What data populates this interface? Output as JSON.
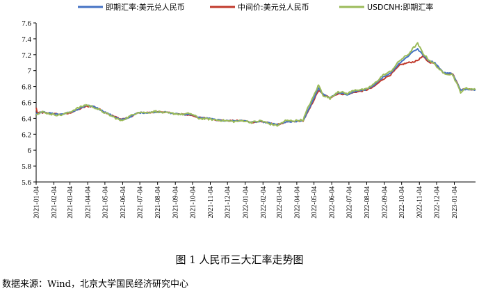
{
  "caption": "图 1  人民币三大汇率走势图",
  "source": "数据来源：Wind，北京大学国民经济研究中心",
  "chart_data": {
    "type": "line",
    "title": "",
    "xlabel": "",
    "ylabel": "",
    "ylim": [
      5.6,
      7.6
    ],
    "yticks": [
      {
        "value": 5.6,
        "label": "5.6"
      },
      {
        "value": 5.8,
        "label": "5.8"
      },
      {
        "value": 6.0,
        "label": "6"
      },
      {
        "value": 6.2,
        "label": "6.2"
      },
      {
        "value": 6.4,
        "label": "6.4"
      },
      {
        "value": 6.6,
        "label": "6.6"
      },
      {
        "value": 6.8,
        "label": "6.8"
      },
      {
        "value": 7.0,
        "label": "7"
      },
      {
        "value": 7.2,
        "label": "7.2"
      },
      {
        "value": 7.4,
        "label": "7.4"
      },
      {
        "value": 7.6,
        "label": "7.6"
      }
    ],
    "x_start": "2021-01-04",
    "x_end": "2023-02-10",
    "xtick_labels": [
      "2021-01-04",
      "2021-02-04",
      "2021-03-04",
      "2021-04-04",
      "2021-05-04",
      "2021-06-04",
      "2021-07-04",
      "2021-08-04",
      "2021-09-04",
      "2021-10-04",
      "2021-11-04",
      "2021-12-04",
      "2022-01-04",
      "2022-02-04",
      "2022-03-04",
      "2022-04-04",
      "2022-05-04",
      "2022-06-04",
      "2022-07-04",
      "2022-08-04",
      "2022-09-04",
      "2022-10-04",
      "2022-11-04",
      "2022-12-04",
      "2023-01-04"
    ],
    "grid": false,
    "legend_position": "top",
    "series": [
      {
        "name": "即期汇率:美元兑人民币",
        "color": "#4472c4",
        "points": [
          [
            "2021-01-04",
            6.47
          ],
          [
            "2021-01-06",
            6.46
          ],
          [
            "2021-01-15",
            6.48
          ],
          [
            "2021-02-01",
            6.46
          ],
          [
            "2021-02-15",
            6.45
          ],
          [
            "2021-03-01",
            6.47
          ],
          [
            "2021-03-15",
            6.5
          ],
          [
            "2021-04-01",
            6.56
          ],
          [
            "2021-04-15",
            6.55
          ],
          [
            "2021-05-01",
            6.49
          ],
          [
            "2021-05-15",
            6.44
          ],
          [
            "2021-06-01",
            6.38
          ],
          [
            "2021-06-15",
            6.41
          ],
          [
            "2021-07-01",
            6.47
          ],
          [
            "2021-07-15",
            6.47
          ],
          [
            "2021-08-01",
            6.48
          ],
          [
            "2021-08-15",
            6.48
          ],
          [
            "2021-09-01",
            6.46
          ],
          [
            "2021-09-15",
            6.45
          ],
          [
            "2021-10-01",
            6.45
          ],
          [
            "2021-10-15",
            6.41
          ],
          [
            "2021-11-01",
            6.4
          ],
          [
            "2021-11-15",
            6.38
          ],
          [
            "2021-12-01",
            6.37
          ],
          [
            "2021-12-15",
            6.37
          ],
          [
            "2022-01-01",
            6.37
          ],
          [
            "2022-01-15",
            6.35
          ],
          [
            "2022-02-01",
            6.36
          ],
          [
            "2022-02-15",
            6.34
          ],
          [
            "2022-03-01",
            6.32
          ],
          [
            "2022-03-15",
            6.35
          ],
          [
            "2022-04-01",
            6.36
          ],
          [
            "2022-04-15",
            6.37
          ],
          [
            "2022-04-25",
            6.52
          ],
          [
            "2022-05-01",
            6.61
          ],
          [
            "2022-05-12",
            6.78
          ],
          [
            "2022-05-20",
            6.7
          ],
          [
            "2022-06-01",
            6.66
          ],
          [
            "2022-06-15",
            6.72
          ],
          [
            "2022-07-01",
            6.7
          ],
          [
            "2022-07-15",
            6.74
          ],
          [
            "2022-08-01",
            6.76
          ],
          [
            "2022-08-15",
            6.8
          ],
          [
            "2022-09-01",
            6.92
          ],
          [
            "2022-09-15",
            6.97
          ],
          [
            "2022-10-01",
            7.1
          ],
          [
            "2022-10-15",
            7.18
          ],
          [
            "2022-10-25",
            7.25
          ],
          [
            "2022-11-01",
            7.27
          ],
          [
            "2022-11-10",
            7.2
          ],
          [
            "2022-11-20",
            7.13
          ],
          [
            "2022-12-01",
            7.1
          ],
          [
            "2022-12-15",
            6.98
          ],
          [
            "2023-01-01",
            6.96
          ],
          [
            "2023-01-15",
            6.75
          ],
          [
            "2023-01-25",
            6.77
          ],
          [
            "2023-02-10",
            6.76
          ]
        ]
      },
      {
        "name": "中间价:美元兑人民币",
        "color": "#c0392b",
        "points": [
          [
            "2021-01-04",
            6.53
          ],
          [
            "2021-01-06",
            6.47
          ],
          [
            "2021-01-15",
            6.47
          ],
          [
            "2021-02-01",
            6.46
          ],
          [
            "2021-02-15",
            6.45
          ],
          [
            "2021-03-01",
            6.46
          ],
          [
            "2021-03-15",
            6.5
          ],
          [
            "2021-04-01",
            6.55
          ],
          [
            "2021-04-15",
            6.55
          ],
          [
            "2021-05-01",
            6.49
          ],
          [
            "2021-05-15",
            6.44
          ],
          [
            "2021-06-01",
            6.39
          ],
          [
            "2021-06-15",
            6.41
          ],
          [
            "2021-07-01",
            6.47
          ],
          [
            "2021-07-15",
            6.47
          ],
          [
            "2021-08-01",
            6.48
          ],
          [
            "2021-08-15",
            6.48
          ],
          [
            "2021-09-01",
            6.46
          ],
          [
            "2021-09-15",
            6.45
          ],
          [
            "2021-10-01",
            6.44
          ],
          [
            "2021-10-15",
            6.41
          ],
          [
            "2021-11-01",
            6.4
          ],
          [
            "2021-11-15",
            6.38
          ],
          [
            "2021-12-01",
            6.37
          ],
          [
            "2021-12-15",
            6.37
          ],
          [
            "2022-01-01",
            6.37
          ],
          [
            "2022-01-15",
            6.35
          ],
          [
            "2022-02-01",
            6.36
          ],
          [
            "2022-02-15",
            6.34
          ],
          [
            "2022-03-01",
            6.32
          ],
          [
            "2022-03-15",
            6.35
          ],
          [
            "2022-04-01",
            6.36
          ],
          [
            "2022-04-15",
            6.37
          ],
          [
            "2022-04-25",
            6.5
          ],
          [
            "2022-05-01",
            6.59
          ],
          [
            "2022-05-12",
            6.75
          ],
          [
            "2022-05-20",
            6.7
          ],
          [
            "2022-06-01",
            6.66
          ],
          [
            "2022-06-15",
            6.71
          ],
          [
            "2022-07-01",
            6.7
          ],
          [
            "2022-07-15",
            6.73
          ],
          [
            "2022-08-01",
            6.75
          ],
          [
            "2022-08-15",
            6.79
          ],
          [
            "2022-09-01",
            6.89
          ],
          [
            "2022-09-15",
            6.95
          ],
          [
            "2022-10-01",
            7.07
          ],
          [
            "2022-10-15",
            7.1
          ],
          [
            "2022-10-25",
            7.11
          ],
          [
            "2022-11-01",
            7.13
          ],
          [
            "2022-11-10",
            7.18
          ],
          [
            "2022-11-20",
            7.11
          ],
          [
            "2022-12-01",
            7.09
          ],
          [
            "2022-12-15",
            6.98
          ],
          [
            "2023-01-01",
            6.96
          ],
          [
            "2023-01-15",
            6.76
          ],
          [
            "2023-01-25",
            6.77
          ],
          [
            "2023-02-10",
            6.76
          ]
        ]
      },
      {
        "name": "USDCNH:即期汇率",
        "color": "#9bbb59",
        "points": [
          [
            "2021-01-04",
            6.46
          ],
          [
            "2021-01-06",
            6.46
          ],
          [
            "2021-01-15",
            6.48
          ],
          [
            "2021-02-01",
            6.45
          ],
          [
            "2021-02-15",
            6.44
          ],
          [
            "2021-03-01",
            6.47
          ],
          [
            "2021-03-15",
            6.52
          ],
          [
            "2021-04-01",
            6.57
          ],
          [
            "2021-04-15",
            6.54
          ],
          [
            "2021-05-01",
            6.48
          ],
          [
            "2021-05-15",
            6.43
          ],
          [
            "2021-06-01",
            6.37
          ],
          [
            "2021-06-15",
            6.42
          ],
          [
            "2021-07-01",
            6.48
          ],
          [
            "2021-07-15",
            6.47
          ],
          [
            "2021-08-01",
            6.49
          ],
          [
            "2021-08-15",
            6.47
          ],
          [
            "2021-09-01",
            6.46
          ],
          [
            "2021-09-15",
            6.45
          ],
          [
            "2021-10-01",
            6.46
          ],
          [
            "2021-10-15",
            6.4
          ],
          [
            "2021-11-01",
            6.39
          ],
          [
            "2021-11-15",
            6.38
          ],
          [
            "2021-12-01",
            6.37
          ],
          [
            "2021-12-15",
            6.36
          ],
          [
            "2022-01-01",
            6.37
          ],
          [
            "2022-01-15",
            6.35
          ],
          [
            "2022-02-01",
            6.37
          ],
          [
            "2022-02-15",
            6.33
          ],
          [
            "2022-03-01",
            6.31
          ],
          [
            "2022-03-15",
            6.37
          ],
          [
            "2022-04-01",
            6.37
          ],
          [
            "2022-04-15",
            6.38
          ],
          [
            "2022-04-25",
            6.56
          ],
          [
            "2022-05-01",
            6.64
          ],
          [
            "2022-05-12",
            6.82
          ],
          [
            "2022-05-20",
            6.69
          ],
          [
            "2022-06-01",
            6.65
          ],
          [
            "2022-06-15",
            6.74
          ],
          [
            "2022-07-01",
            6.71
          ],
          [
            "2022-07-15",
            6.76
          ],
          [
            "2022-08-01",
            6.76
          ],
          [
            "2022-08-15",
            6.82
          ],
          [
            "2022-09-01",
            6.94
          ],
          [
            "2022-09-15",
            6.99
          ],
          [
            "2022-10-01",
            7.13
          ],
          [
            "2022-10-15",
            7.2
          ],
          [
            "2022-10-25",
            7.29
          ],
          [
            "2022-11-01",
            7.34
          ],
          [
            "2022-11-10",
            7.22
          ],
          [
            "2022-11-20",
            7.14
          ],
          [
            "2022-12-01",
            7.08
          ],
          [
            "2022-12-15",
            6.97
          ],
          [
            "2023-01-01",
            6.95
          ],
          [
            "2023-01-15",
            6.73
          ],
          [
            "2023-01-25",
            6.78
          ],
          [
            "2023-02-10",
            6.76
          ]
        ]
      }
    ]
  }
}
